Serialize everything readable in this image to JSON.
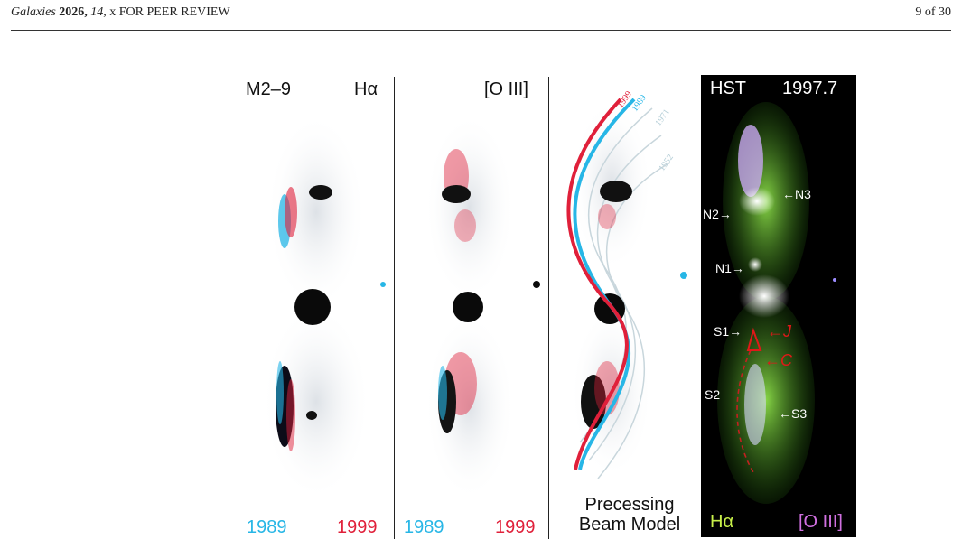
{
  "header": {
    "journal": "Galaxies",
    "year": "2026,",
    "volume": "14,",
    "rest": "x FOR PEER REVIEW",
    "page": "9 of 30"
  },
  "panels": {
    "p1": {
      "object": "M2–9",
      "line": "Hα",
      "year_a": "1989",
      "year_b": "1999"
    },
    "p2": {
      "line": "[O III]",
      "year_a": "1989",
      "year_b": "1999"
    },
    "p3": {
      "caption": "Precessing Beam Model",
      "curve_labels": [
        "1999",
        "1989",
        "1971",
        "1952"
      ]
    },
    "p4": {
      "telescope": "HST",
      "epoch": "1997.7",
      "knots": [
        "N3",
        "N2",
        "N1",
        "S1",
        "S2",
        "S3"
      ],
      "knot_labels": {
        "N3": "←N3",
        "N2": "N2→",
        "N1": "N1→",
        "S1": "S1→",
        "S2": "S2",
        "S3": "←S3"
      },
      "red_annotations": {
        "J": "←J",
        "C": "←C"
      },
      "legend_left": "Hα",
      "legend_right": "[O III]"
    }
  },
  "colors": {
    "cyan": "#27b6e6",
    "red": "#e0203a",
    "green": "#6fd23a",
    "magenta": "#d070e0"
  }
}
